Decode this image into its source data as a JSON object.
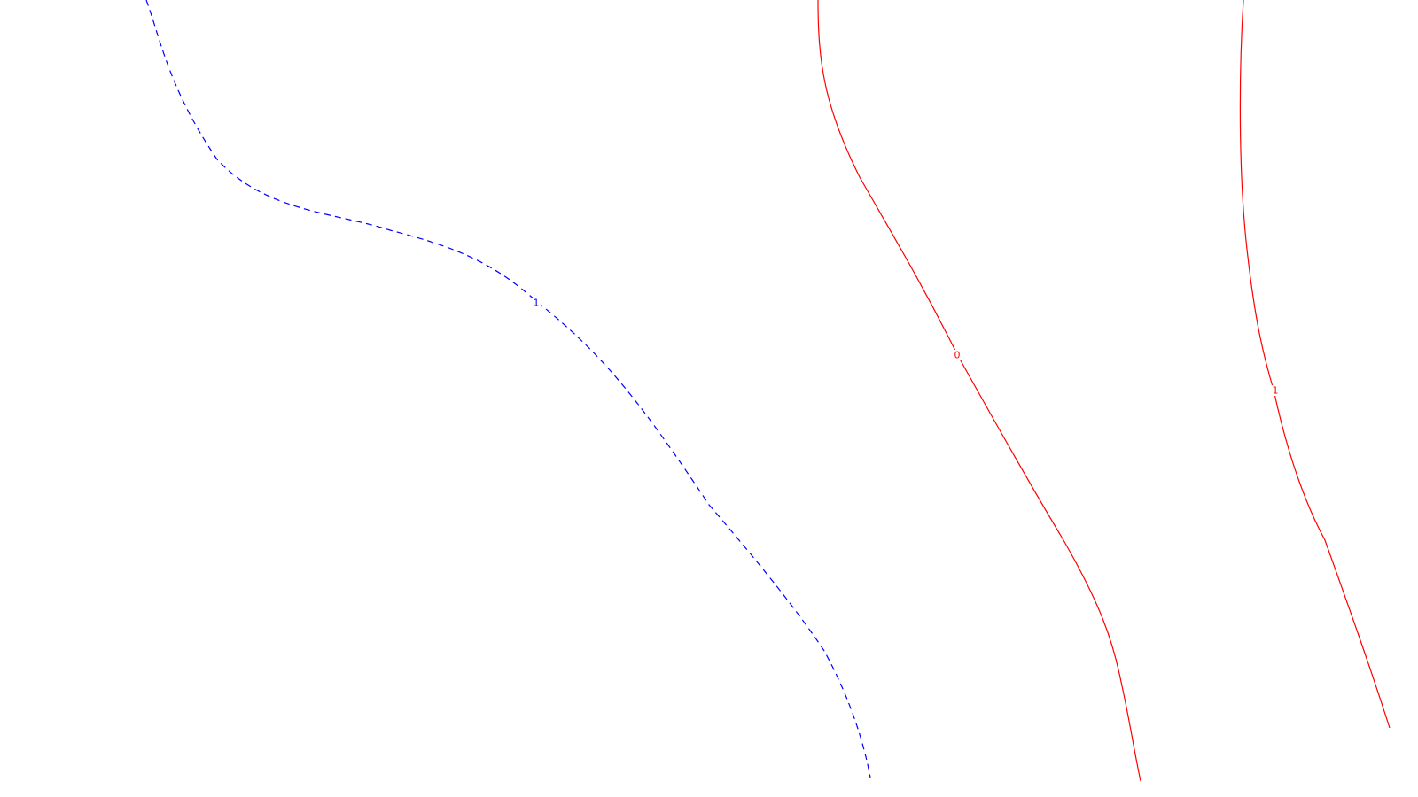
{
  "chart_data": {
    "type": "contour",
    "title": "",
    "xlabel": "",
    "ylabel": "",
    "grid": false,
    "legend": "none",
    "colors": {
      "positive": "#0000ff",
      "zero": "#ff0000",
      "negative": "#ff0000",
      "background": "#ffffff"
    },
    "levels": [
      {
        "value": 1,
        "label": "1",
        "color": "#0000ff",
        "style": "dashed"
      },
      {
        "value": 0,
        "label": "0",
        "color": "#ff0000",
        "style": "solid"
      },
      {
        "value": -1,
        "label": "-1",
        "color": "#ff0000",
        "style": "solid"
      }
    ]
  }
}
